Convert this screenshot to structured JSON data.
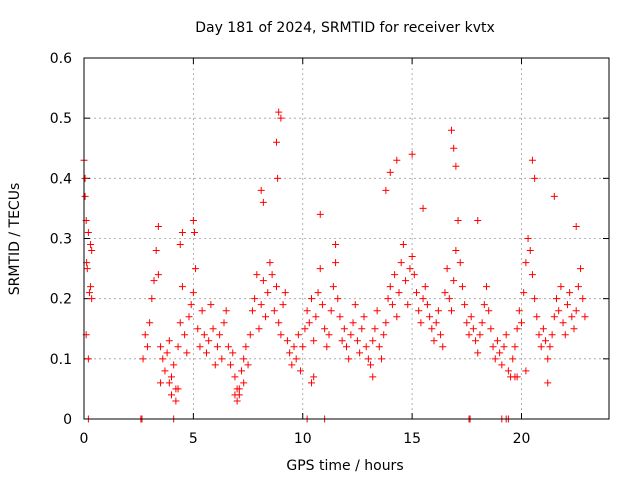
{
  "colors": {
    "points": "#ff0000",
    "frame": "#000000",
    "grid": "#a0a0a0"
  },
  "chart_data": {
    "type": "scatter",
    "title": "Day 181 of 2024, SRMTID for receiver kvtx",
    "xlabel": "GPS time / hours",
    "ylabel": "SRMTID / TECUs",
    "xlim": [
      0,
      24
    ],
    "ylim": [
      0,
      0.6
    ],
    "x_ticks": [
      0,
      5,
      10,
      15,
      20
    ],
    "y_ticks": [
      0,
      0.1,
      0.2,
      0.3,
      0.4,
      0.5,
      0.6
    ],
    "x_tick_labels": [
      "0",
      "5",
      "10",
      "15",
      "20"
    ],
    "y_tick_labels": [
      "0",
      "0.1",
      "0.2",
      "0.3",
      "0.4",
      "0.5",
      "0.6"
    ],
    "grid": true,
    "marker": "plus",
    "series": [
      {
        "name": "SRMTID",
        "x": [
          0.0,
          0.05,
          0.1,
          0.12,
          0.15,
          0.2,
          0.25,
          0.3,
          0.35,
          0.05,
          0.1,
          0.2,
          0.3,
          0.35,
          2.7,
          2.8,
          2.9,
          3.0,
          3.1,
          3.2,
          3.3,
          3.4,
          3.5,
          3.6,
          3.7,
          3.8,
          3.9,
          4.0,
          4.1,
          4.2,
          4.3,
          4.4,
          4.5,
          4.6,
          4.7,
          4.8,
          4.9,
          5.0,
          5.1,
          5.2,
          5.3,
          5.4,
          5.5,
          5.6,
          5.7,
          5.8,
          5.9,
          6.0,
          6.1,
          6.2,
          6.3,
          6.4,
          6.5,
          6.6,
          6.7,
          6.8,
          6.9,
          7.0,
          7.1,
          7.2,
          7.3,
          7.4,
          7.5,
          7.6,
          7.7,
          7.8,
          7.9,
          8.0,
          8.1,
          8.2,
          8.3,
          8.4,
          8.5,
          8.6,
          8.7,
          8.8,
          8.9,
          9.0,
          9.1,
          9.2,
          9.3,
          9.4,
          9.5,
          9.6,
          9.7,
          9.8,
          9.9,
          10.0,
          10.1,
          10.2,
          10.3,
          10.4,
          10.5,
          10.6,
          10.7,
          10.8,
          10.9,
          11.0,
          11.1,
          11.2,
          11.3,
          11.4,
          11.5,
          11.6,
          11.7,
          11.8,
          11.9,
          12.0,
          12.1,
          12.2,
          12.3,
          12.4,
          12.5,
          12.6,
          12.7,
          12.8,
          12.9,
          13.0,
          13.1,
          13.2,
          13.3,
          13.4,
          13.5,
          13.6,
          13.7,
          13.8,
          13.9,
          14.0,
          14.1,
          14.2,
          14.3,
          14.4,
          14.5,
          14.6,
          14.7,
          14.8,
          14.9,
          15.0,
          15.1,
          15.2,
          15.3,
          15.4,
          15.5,
          15.6,
          15.7,
          15.8,
          15.9,
          16.0,
          16.1,
          16.2,
          16.3,
          16.4,
          16.5,
          16.6,
          16.7,
          16.8,
          16.9,
          17.0,
          17.1,
          17.2,
          17.3,
          17.4,
          17.5,
          17.6,
          17.7,
          17.8,
          17.9,
          18.0,
          18.1,
          18.2,
          18.3,
          18.4,
          18.5,
          18.6,
          18.7,
          18.8,
          18.9,
          19.0,
          19.1,
          19.2,
          19.3,
          19.4,
          19.5,
          19.6,
          19.7,
          19.8,
          19.9,
          20.0,
          20.1,
          20.2,
          20.3,
          20.4,
          20.5,
          20.6,
          20.7,
          20.8,
          20.9,
          21.0,
          21.1,
          21.2,
          21.3,
          21.4,
          21.5,
          21.6,
          21.7,
          21.8,
          21.9,
          22.0,
          22.1,
          22.2,
          22.3,
          22.4,
          22.5,
          22.6,
          22.7,
          22.8,
          22.9,
          8.1,
          8.2,
          8.8,
          8.9,
          9.0,
          8.85,
          14.3,
          15.0,
          16.8,
          16.9,
          17.0,
          20.5,
          20.6,
          3.4,
          4.4,
          4.5,
          5.0,
          5.05,
          10.8,
          11.5,
          13.8,
          14.0,
          15.5,
          18.0,
          21.5,
          22.5,
          3.5,
          3.9,
          4.0,
          4.2,
          4.3,
          6.9,
          7.0,
          7.1,
          7.3,
          10.4,
          10.5,
          13.2,
          19.7,
          19.8,
          20.2,
          21.2,
          2.6,
          2.65,
          4.1,
          10.2,
          11.0,
          17.6,
          17.65,
          19.1,
          19.3,
          19.4,
          0.2
        ],
        "y": [
          0.43,
          0.4,
          0.33,
          0.26,
          0.25,
          0.31,
          0.21,
          0.29,
          0.2,
          0.37,
          0.14,
          0.1,
          0.22,
          0.28,
          0.1,
          0.14,
          0.12,
          0.16,
          0.2,
          0.23,
          0.28,
          0.24,
          0.12,
          0.1,
          0.08,
          0.11,
          0.13,
          0.07,
          0.09,
          0.05,
          0.12,
          0.16,
          0.22,
          0.14,
          0.11,
          0.17,
          0.19,
          0.21,
          0.25,
          0.15,
          0.12,
          0.18,
          0.14,
          0.11,
          0.13,
          0.19,
          0.15,
          0.09,
          0.12,
          0.14,
          0.1,
          0.16,
          0.18,
          0.12,
          0.09,
          0.11,
          0.07,
          0.05,
          0.04,
          0.08,
          0.1,
          0.12,
          0.09,
          0.14,
          0.18,
          0.2,
          0.24,
          0.15,
          0.19,
          0.23,
          0.17,
          0.21,
          0.26,
          0.24,
          0.18,
          0.22,
          0.16,
          0.14,
          0.19,
          0.21,
          0.13,
          0.11,
          0.09,
          0.12,
          0.1,
          0.14,
          0.08,
          0.12,
          0.15,
          0.18,
          0.16,
          0.2,
          0.13,
          0.17,
          0.21,
          0.25,
          0.19,
          0.15,
          0.12,
          0.14,
          0.18,
          0.22,
          0.26,
          0.2,
          0.17,
          0.13,
          0.15,
          0.12,
          0.1,
          0.14,
          0.16,
          0.19,
          0.13,
          0.11,
          0.15,
          0.17,
          0.12,
          0.1,
          0.09,
          0.13,
          0.15,
          0.18,
          0.12,
          0.1,
          0.14,
          0.16,
          0.2,
          0.22,
          0.19,
          0.24,
          0.17,
          0.21,
          0.26,
          0.29,
          0.23,
          0.19,
          0.25,
          0.27,
          0.24,
          0.21,
          0.18,
          0.16,
          0.2,
          0.22,
          0.19,
          0.17,
          0.15,
          0.13,
          0.16,
          0.18,
          0.14,
          0.12,
          0.21,
          0.25,
          0.2,
          0.18,
          0.23,
          0.28,
          0.33,
          0.26,
          0.22,
          0.19,
          0.16,
          0.14,
          0.17,
          0.15,
          0.13,
          0.11,
          0.14,
          0.16,
          0.19,
          0.22,
          0.18,
          0.15,
          0.12,
          0.1,
          0.13,
          0.11,
          0.09,
          0.12,
          0.14,
          0.08,
          0.07,
          0.1,
          0.12,
          0.15,
          0.18,
          0.16,
          0.21,
          0.26,
          0.3,
          0.28,
          0.24,
          0.2,
          0.17,
          0.14,
          0.12,
          0.15,
          0.13,
          0.1,
          0.12,
          0.14,
          0.17,
          0.2,
          0.18,
          0.22,
          0.16,
          0.14,
          0.19,
          0.21,
          0.17,
          0.15,
          0.18,
          0.22,
          0.25,
          0.2,
          0.17,
          0.38,
          0.36,
          0.46,
          0.51,
          0.5,
          0.4,
          0.43,
          0.44,
          0.48,
          0.45,
          0.42,
          0.43,
          0.4,
          0.32,
          0.29,
          0.31,
          0.33,
          0.31,
          0.34,
          0.29,
          0.38,
          0.41,
          0.35,
          0.33,
          0.37,
          0.32,
          0.06,
          0.06,
          0.04,
          0.03,
          0.05,
          0.04,
          0.03,
          0.05,
          0.06,
          0.06,
          0.07,
          0.07,
          0.07,
          0.07,
          0.08,
          0.06,
          0.0,
          0.0,
          0.0,
          0.0,
          0.0,
          0.0,
          0.0,
          0.0,
          0.0,
          0.0,
          0.0
        ]
      }
    ]
  }
}
